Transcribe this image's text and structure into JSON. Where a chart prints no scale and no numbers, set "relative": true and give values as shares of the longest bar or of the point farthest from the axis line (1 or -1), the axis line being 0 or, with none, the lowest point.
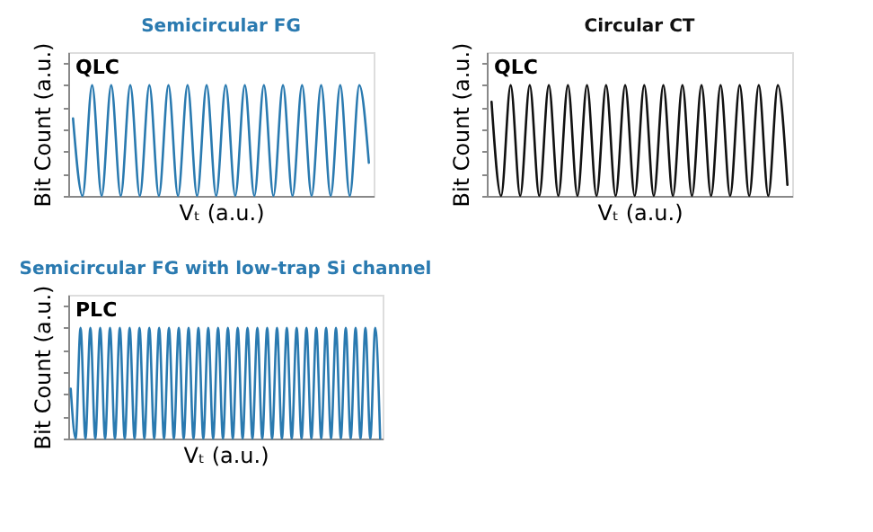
{
  "chart_data": [
    {
      "type": "line",
      "title": "Semicircular  FG",
      "xlabel": "Vₜ (a.u.)",
      "ylabel": "Bit Count (a.u.)",
      "annotations": [
        "QLC"
      ],
      "relative": true,
      "tick_labels": false,
      "grid": false,
      "legend": false,
      "marker": "none",
      "line_style": "solid",
      "categories": [
        null,
        null,
        null,
        null,
        null,
        null,
        null,
        null,
        null,
        null,
        null,
        null,
        null,
        null,
        null,
        null,
        null,
        null,
        null,
        null,
        null,
        null,
        null,
        null,
        null,
        null,
        null,
        null,
        null,
        null,
        null,
        null
      ],
      "series": [
        {
          "color": "#2a7ab0",
          "values": [
            0.7,
            0,
            1,
            0,
            1,
            0,
            1,
            0,
            1,
            0,
            1,
            0,
            1,
            0,
            1,
            0,
            1,
            0,
            1,
            0,
            1,
            0,
            1,
            0,
            1,
            0,
            1,
            0,
            1,
            0,
            1,
            0.3
          ]
        }
      ]
    },
    {
      "type": "line",
      "title": "Circular CT",
      "xlabel": "Vₜ (a.u.)",
      "ylabel": "Bit Count (a.u.)",
      "annotations": [
        "QLC"
      ],
      "relative": true,
      "tick_labels": false,
      "grid": false,
      "legend": false,
      "marker": "none",
      "line_style": "solid",
      "categories": [
        null,
        null,
        null,
        null,
        null,
        null,
        null,
        null,
        null,
        null,
        null,
        null,
        null,
        null,
        null,
        null,
        null,
        null,
        null,
        null,
        null,
        null,
        null,
        null,
        null,
        null,
        null,
        null,
        null,
        null,
        null,
        null
      ],
      "series": [
        {
          "color": "#111111",
          "values": [
            0.85,
            0,
            1,
            0,
            1,
            0,
            1,
            0,
            1,
            0,
            1,
            0,
            1,
            0,
            1,
            0,
            1,
            0,
            1,
            0,
            1,
            0,
            1,
            0,
            1,
            0,
            1,
            0,
            1,
            0,
            1,
            0.1
          ]
        }
      ]
    },
    {
      "type": "line",
      "title": "Semicircular  FG with low-trap Si channel",
      "xlabel": "Vₜ (a.u.)",
      "ylabel": "Bit Count (a.u.)",
      "annotations": [
        "PLC"
      ],
      "relative": true,
      "tick_labels": false,
      "grid": false,
      "legend": false,
      "marker": "none",
      "line_style": "solid",
      "categories": [
        null,
        null,
        null,
        null,
        null,
        null,
        null,
        null,
        null,
        null,
        null,
        null,
        null,
        null,
        null,
        null,
        null,
        null,
        null,
        null,
        null,
        null,
        null,
        null,
        null,
        null,
        null,
        null,
        null,
        null,
        null,
        null,
        null,
        null,
        null,
        null,
        null,
        null,
        null,
        null,
        null,
        null,
        null,
        null,
        null,
        null,
        null,
        null,
        null,
        null,
        null,
        null,
        null,
        null,
        null,
        null,
        null,
        null,
        null,
        null,
        null,
        null,
        null,
        null
      ],
      "series": [
        {
          "color": "#2a7ab0",
          "values": [
            0.45,
            0,
            1,
            0,
            1,
            0,
            1,
            0,
            1,
            0,
            1,
            0,
            1,
            0,
            1,
            0,
            1,
            0,
            1,
            0,
            1,
            0,
            1,
            0,
            1,
            0,
            1,
            0,
            1,
            0,
            1,
            0,
            1,
            0,
            1,
            0,
            1,
            0,
            1,
            0,
            1,
            0,
            1,
            0,
            1,
            0,
            1,
            0,
            1,
            0,
            1,
            0,
            1,
            0,
            1,
            0,
            1,
            0,
            1,
            0,
            1,
            0,
            1,
            0
          ]
        }
      ]
    }
  ]
}
